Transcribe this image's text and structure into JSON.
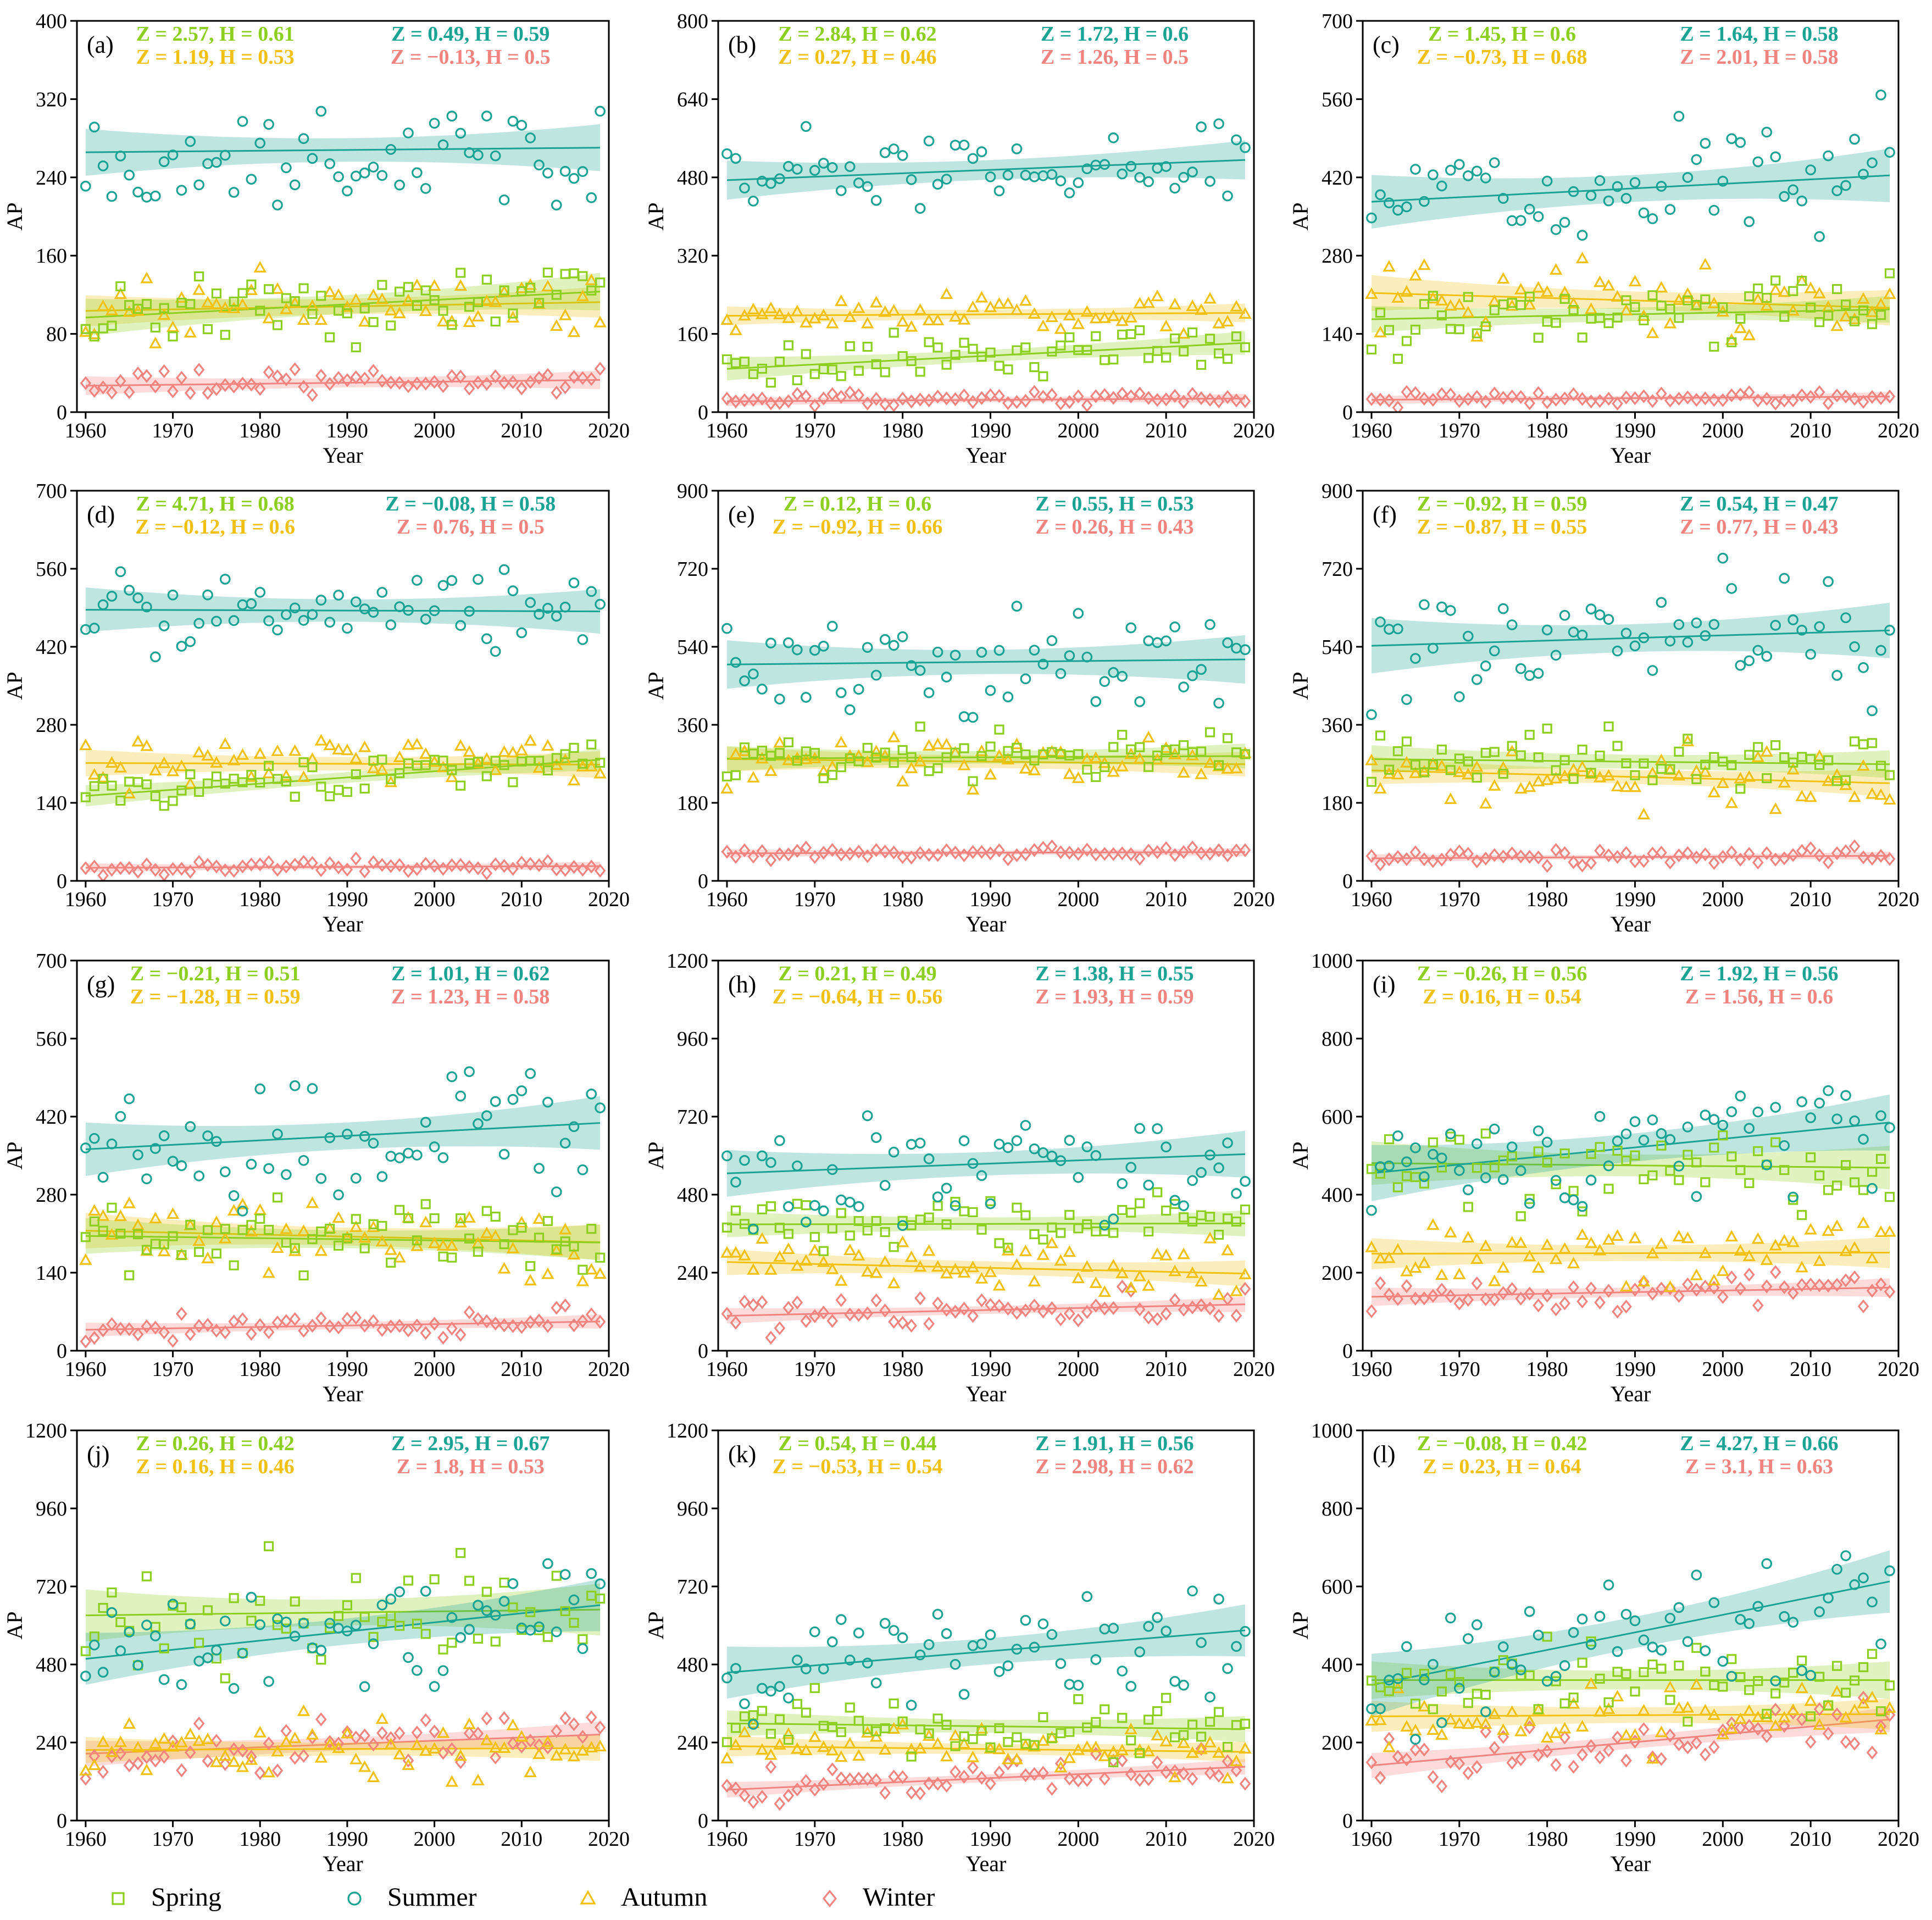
{
  "colors": {
    "spring": "#8ccf1e",
    "summer": "#19a394",
    "autumn": "#f2c10f",
    "winter": "#f2837e"
  },
  "legend": [
    {
      "key": "spring",
      "label": "Spring",
      "marker": "square"
    },
    {
      "key": "summer",
      "label": "Summer",
      "marker": "circle"
    },
    {
      "key": "autumn",
      "label": "Autumn",
      "marker": "triangle"
    },
    {
      "key": "winter",
      "label": "Winter",
      "marker": "diamond"
    }
  ],
  "chart_data": [
    {
      "type": "scatter",
      "panel": "(a)",
      "xlabel": "Year",
      "ylabel": "AP",
      "xlim": [
        1959,
        2020
      ],
      "xticks": [
        1960,
        1970,
        1980,
        1990,
        2000,
        2010,
        2020
      ],
      "ylim": [
        0,
        400
      ],
      "yticks": [
        0,
        80,
        160,
        240,
        320,
        400
      ],
      "stats": {
        "spring": "Z = 2.57, H = 0.61",
        "summer": "Z = 0.49, H = 0.59",
        "autumn": "Z = 1.19, H = 0.53",
        "winter": "Z = −0.13, H = 0.5"
      },
      "series": {
        "spring": {
          "mean": 110,
          "slope": 0.45,
          "spread": 25,
          "band": 12
        },
        "summer": {
          "mean": 268,
          "slope": 0.08,
          "spread": 35,
          "band": 15
        },
        "autumn": {
          "mean": 108,
          "slope": 0.15,
          "spread": 22,
          "band": 10
        },
        "winter": {
          "mean": 30,
          "slope": 0.1,
          "spread": 10,
          "band": 6
        }
      }
    },
    {
      "type": "scatter",
      "panel": "(b)",
      "xlabel": "Year",
      "ylabel": "AP",
      "xlim": [
        1959,
        2020
      ],
      "xticks": [
        1960,
        1970,
        1980,
        1990,
        2000,
        2010,
        2020
      ],
      "ylim": [
        0,
        800
      ],
      "yticks": [
        0,
        160,
        320,
        480,
        640,
        800
      ],
      "stats": {
        "spring": "Z = 2.84, H = 0.62",
        "summer": "Z = 1.72, H = 0.6",
        "autumn": "Z = 0.27, H = 0.46",
        "winter": "Z = 1.26, H = 0.5"
      },
      "series": {
        "spring": {
          "mean": 115,
          "slope": 0.9,
          "spread": 30,
          "band": 15
        },
        "summer": {
          "mean": 495,
          "slope": 0.7,
          "spread": 60,
          "band": 25
        },
        "autumn": {
          "mean": 200,
          "slope": 0.1,
          "spread": 25,
          "band": 12
        },
        "winter": {
          "mean": 25,
          "slope": 0.1,
          "spread": 10,
          "band": 6
        }
      }
    },
    {
      "type": "scatter",
      "panel": "(c)",
      "xlabel": "Year",
      "ylabel": "AP",
      "xlim": [
        1959,
        2020
      ],
      "xticks": [
        1960,
        1970,
        1980,
        1990,
        2000,
        2010,
        2020
      ],
      "ylim": [
        0,
        700
      ],
      "yticks": [
        0,
        140,
        280,
        420,
        560,
        700
      ],
      "stats": {
        "spring": "Z = 1.45, H = 0.6",
        "summer": "Z = 1.64, H = 0.58",
        "autumn": "Z = −0.73, H = 0.68",
        "winter": "Z = 2.01, H = 0.58"
      },
      "series": {
        "spring": {
          "mean": 175,
          "slope": 0.3,
          "spread": 40,
          "band": 15
        },
        "summer": {
          "mean": 400,
          "slope": 0.8,
          "spread": 70,
          "band": 30
        },
        "autumn": {
          "mean": 200,
          "slope": -0.45,
          "spread": 45,
          "band": 20
        },
        "winter": {
          "mean": 25,
          "slope": 0.1,
          "spread": 8,
          "band": 5
        }
      }
    },
    {
      "type": "scatter",
      "panel": "(d)",
      "xlabel": "Year",
      "ylabel": "AP",
      "xlim": [
        1959,
        2020
      ],
      "xticks": [
        1960,
        1970,
        1980,
        1990,
        2000,
        2010,
        2020
      ],
      "ylim": [
        0,
        700
      ],
      "yticks": [
        0,
        140,
        280,
        420,
        560,
        700
      ],
      "stats": {
        "spring": "Z = 4.71, H = 0.68",
        "summer": "Z = −0.08, H = 0.58",
        "autumn": "Z = −0.12, H = 0.6",
        "winter": "Z = 0.76, H = 0.5"
      },
      "series": {
        "spring": {
          "mean": 185,
          "slope": 1.1,
          "spread": 25,
          "band": 12
        },
        "summer": {
          "mean": 485,
          "slope": -0.05,
          "spread": 50,
          "band": 25
        },
        "autumn": {
          "mean": 210,
          "slope": -0.05,
          "spread": 30,
          "band": 15
        },
        "winter": {
          "mean": 25,
          "slope": 0.05,
          "spread": 8,
          "band": 5
        }
      }
    },
    {
      "type": "scatter",
      "panel": "(e)",
      "xlabel": "Year",
      "ylabel": "AP",
      "xlim": [
        1959,
        2020
      ],
      "xticks": [
        1960,
        1970,
        1980,
        1990,
        2000,
        2010,
        2020
      ],
      "ylim": [
        0,
        900
      ],
      "yticks": [
        0,
        180,
        360,
        540,
        720,
        900
      ],
      "stats": {
        "spring": "Z = 0.12, H = 0.6",
        "summer": "Z = 0.55, H = 0.53",
        "autumn": "Z = −0.92, H = 0.66",
        "winter": "Z = 0.26, H = 0.43"
      },
      "series": {
        "spring": {
          "mean": 285,
          "slope": 0.1,
          "spread": 40,
          "band": 18
        },
        "summer": {
          "mean": 505,
          "slope": 0.2,
          "spread": 90,
          "band": 35
        },
        "autumn": {
          "mean": 275,
          "slope": -0.2,
          "spread": 40,
          "band": 18
        },
        "winter": {
          "mean": 65,
          "slope": 0.05,
          "spread": 12,
          "band": 6
        }
      }
    },
    {
      "type": "scatter",
      "panel": "(f)",
      "xlabel": "Year",
      "ylabel": "AP",
      "xlim": [
        1959,
        2020
      ],
      "xticks": [
        1960,
        1970,
        1980,
        1990,
        2000,
        2010,
        2020
      ],
      "ylim": [
        0,
        900
      ],
      "yticks": [
        0,
        180,
        360,
        540,
        720,
        900
      ],
      "stats": {
        "spring": "Z = −0.92, H = 0.59",
        "summer": "Z = 0.54, H = 0.47",
        "autumn": "Z = −0.87, H = 0.55",
        "winter": "Z = 0.77, H = 0.43"
      },
      "series": {
        "spring": {
          "mean": 275,
          "slope": -0.2,
          "spread": 45,
          "band": 20
        },
        "summer": {
          "mean": 560,
          "slope": 0.6,
          "spread": 100,
          "band": 40
        },
        "autumn": {
          "mean": 240,
          "slope": -0.5,
          "spread": 50,
          "band": 20
        },
        "winter": {
          "mean": 55,
          "slope": 0.1,
          "spread": 12,
          "band": 6
        }
      }
    },
    {
      "type": "scatter",
      "panel": "(g)",
      "xlabel": "Year",
      "ylabel": "AP",
      "xlim": [
        1959,
        2020
      ],
      "xticks": [
        1960,
        1970,
        1980,
        1990,
        2000,
        2010,
        2020
      ],
      "ylim": [
        0,
        700
      ],
      "yticks": [
        0,
        140,
        280,
        420,
        560,
        700
      ],
      "stats": {
        "spring": "Z = −0.21, H = 0.51",
        "summer": "Z = 1.01, H = 0.62",
        "autumn": "Z = −1.28, H = 0.59",
        "winter": "Z = 1.23, H = 0.58"
      },
      "series": {
        "spring": {
          "mean": 200,
          "slope": -0.2,
          "spread": 45,
          "band": 20
        },
        "summer": {
          "mean": 385,
          "slope": 0.8,
          "spread": 70,
          "band": 30
        },
        "autumn": {
          "mean": 205,
          "slope": -0.35,
          "spread": 50,
          "band": 20
        },
        "winter": {
          "mean": 45,
          "slope": 0.25,
          "spread": 15,
          "band": 8
        }
      }
    },
    {
      "type": "scatter",
      "panel": "(h)",
      "xlabel": "Year",
      "ylabel": "AP",
      "xlim": [
        1959,
        2020
      ],
      "xticks": [
        1960,
        1970,
        1980,
        1990,
        2000,
        2010,
        2020
      ],
      "ylim": [
        0,
        1200
      ],
      "yticks": [
        0,
        240,
        480,
        720,
        960,
        1200
      ],
      "stats": {
        "spring": "Z = 0.21, H = 0.49",
        "summer": "Z = 1.38, H = 0.55",
        "autumn": "Z = −0.64, H = 0.56",
        "winter": "Z = 1.93, H = 0.59"
      },
      "series": {
        "spring": {
          "mean": 390,
          "slope": 0.05,
          "spread": 60,
          "band": 25
        },
        "summer": {
          "mean": 575,
          "slope": 1.0,
          "spread": 120,
          "band": 45
        },
        "autumn": {
          "mean": 255,
          "slope": -0.6,
          "spread": 60,
          "band": 25
        },
        "winter": {
          "mean": 125,
          "slope": 0.6,
          "spread": 35,
          "band": 15
        }
      }
    },
    {
      "type": "scatter",
      "panel": "(i)",
      "xlabel": "Year",
      "ylabel": "AP",
      "xlim": [
        1959,
        2020
      ],
      "xticks": [
        1960,
        1970,
        1980,
        1990,
        2000,
        2010,
        2020
      ],
      "ylim": [
        0,
        1000
      ],
      "yticks": [
        0,
        200,
        400,
        600,
        800,
        1000
      ],
      "stats": {
        "spring": "Z = −0.26, H = 0.56",
        "summer": "Z = 1.92, H = 0.56",
        "autumn": "Z = 0.16, H = 0.54",
        "winter": "Z = 1.56, H = 0.6"
      },
      "series": {
        "spring": {
          "mean": 475,
          "slope": -0.2,
          "spread": 90,
          "band": 35
        },
        "summer": {
          "mean": 520,
          "slope": 2.2,
          "spread": 110,
          "band": 45
        },
        "autumn": {
          "mean": 250,
          "slope": 0.05,
          "spread": 60,
          "band": 25
        },
        "winter": {
          "mean": 150,
          "slope": 0.4,
          "spread": 35,
          "band": 15
        }
      }
    },
    {
      "type": "scatter",
      "panel": "(j)",
      "xlabel": "Year",
      "ylabel": "AP",
      "xlim": [
        1959,
        2020
      ],
      "xticks": [
        1960,
        1970,
        1980,
        1990,
        2000,
        2010,
        2020
      ],
      "ylim": [
        0,
        1200
      ],
      "yticks": [
        0,
        240,
        480,
        720,
        960,
        1200
      ],
      "stats": {
        "spring": "Z = 0.26, H = 0.42",
        "summer": "Z = 2.95, H = 0.67",
        "autumn": "Z = 0.16, H = 0.46",
        "winter": "Z = 1.8, H = 0.53"
      },
      "series": {
        "spring": {
          "mean": 640,
          "slope": 0.3,
          "spread": 120,
          "band": 50
        },
        "summer": {
          "mean": 580,
          "slope": 2.8,
          "spread": 120,
          "band": 50
        },
        "autumn": {
          "mean": 220,
          "slope": 0.1,
          "spread": 60,
          "band": 25
        },
        "winter": {
          "mean": 235,
          "slope": 1.0,
          "spread": 60,
          "band": 25
        }
      }
    },
    {
      "type": "scatter",
      "panel": "(k)",
      "xlabel": "Year",
      "ylabel": "AP",
      "xlim": [
        1959,
        2020
      ],
      "xticks": [
        1960,
        1970,
        1980,
        1990,
        2000,
        2010,
        2020
      ],
      "ylim": [
        0,
        1200
      ],
      "yticks": [
        0,
        240,
        480,
        720,
        960,
        1200
      ],
      "stats": {
        "spring": "Z = 0.54, H = 0.44",
        "summer": "Z = 1.91, H = 0.56",
        "autumn": "Z = −0.53, H = 0.54",
        "winter": "Z = 2.98, H = 0.62"
      },
      "series": {
        "spring": {
          "mean": 290,
          "slope": -0.3,
          "spread": 60,
          "band": 25
        },
        "summer": {
          "mean": 520,
          "slope": 2.2,
          "spread": 120,
          "band": 50
        },
        "autumn": {
          "mean": 220,
          "slope": -0.3,
          "spread": 50,
          "band": 20
        },
        "winter": {
          "mean": 130,
          "slope": 1.2,
          "spread": 35,
          "band": 15
        }
      }
    },
    {
      "type": "scatter",
      "panel": "(l)",
      "xlabel": "Year",
      "ylabel": "AP",
      "xlim": [
        1959,
        2020
      ],
      "xticks": [
        1960,
        1970,
        1980,
        1990,
        2000,
        2010,
        2020
      ],
      "ylim": [
        0,
        1000
      ],
      "yticks": [
        0,
        200,
        400,
        600,
        800,
        1000
      ],
      "stats": {
        "spring": "Z = −0.08, H = 0.42",
        "summer": "Z = 4.27, H = 0.66",
        "autumn": "Z = 0.23, H = 0.64",
        "winter": "Z = 3.1, H = 0.63"
      },
      "series": {
        "spring": {
          "mean": 360,
          "slope": 0.0,
          "spread": 70,
          "band": 30
        },
        "summer": {
          "mean": 480,
          "slope": 4.5,
          "spread": 120,
          "band": 50
        },
        "autumn": {
          "mean": 270,
          "slope": 0.1,
          "spread": 60,
          "band": 25
        },
        "winter": {
          "mean": 200,
          "slope": 2.0,
          "spread": 50,
          "band": 20
        }
      }
    }
  ]
}
